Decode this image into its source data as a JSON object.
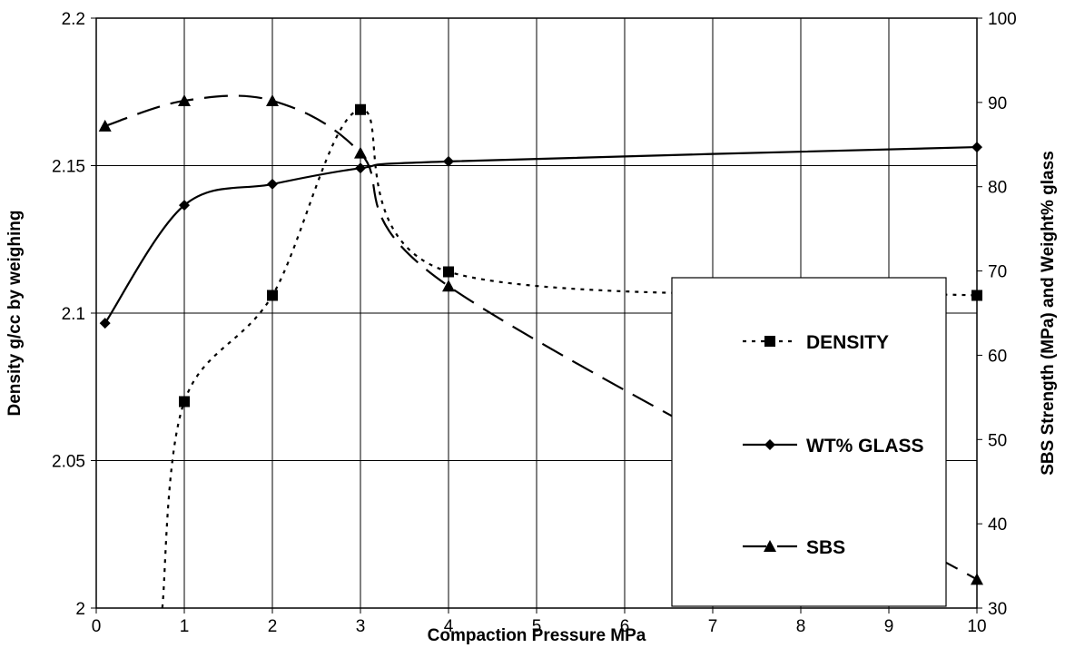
{
  "chart_data": {
    "type": "line",
    "title": "",
    "xlabel": "Compaction Pressure MPa",
    "ylabel": "Density g/cc by weighing",
    "y2label": "SBS Strength (MPa) and Weight% glass",
    "xlim": [
      0,
      10
    ],
    "ylim": [
      2.0,
      2.2
    ],
    "y2lim": [
      30,
      100
    ],
    "x_ticks": [
      "0",
      "1",
      "2",
      "3",
      "4",
      "5",
      "6",
      "7",
      "8",
      "9",
      "10"
    ],
    "y_ticks": [
      "2",
      "2.05",
      "2.1",
      "2.15",
      "2.2"
    ],
    "y2_ticks": [
      "30",
      "40",
      "50",
      "60",
      "70",
      "80",
      "90",
      "100"
    ],
    "grid": true,
    "legend_position": "lower-right",
    "series": [
      {
        "name": "DENSITY",
        "axis": "left",
        "line_style": "dotted",
        "marker": "square",
        "x": [
          1,
          2,
          3,
          4,
          10
        ],
        "y": [
          2.07,
          2.106,
          2.169,
          2.114,
          2.106
        ],
        "extrapolated_start": {
          "x": 0.75,
          "y": 2.0
        }
      },
      {
        "name": "WT% GLASS",
        "axis": "right",
        "line_style": "solid",
        "marker": "diamond",
        "x": [
          0.1,
          1,
          2,
          3,
          4,
          10
        ],
        "y": [
          63.8,
          77.8,
          80.3,
          82.2,
          83.0,
          84.7
        ]
      },
      {
        "name": "SBS",
        "axis": "right",
        "line_style": "dashed",
        "marker": "triangle",
        "x": [
          0.1,
          1,
          2,
          3,
          4,
          10
        ],
        "y": [
          87.2,
          90.2,
          90.2,
          84.0,
          68.2,
          33.4
        ]
      }
    ]
  }
}
